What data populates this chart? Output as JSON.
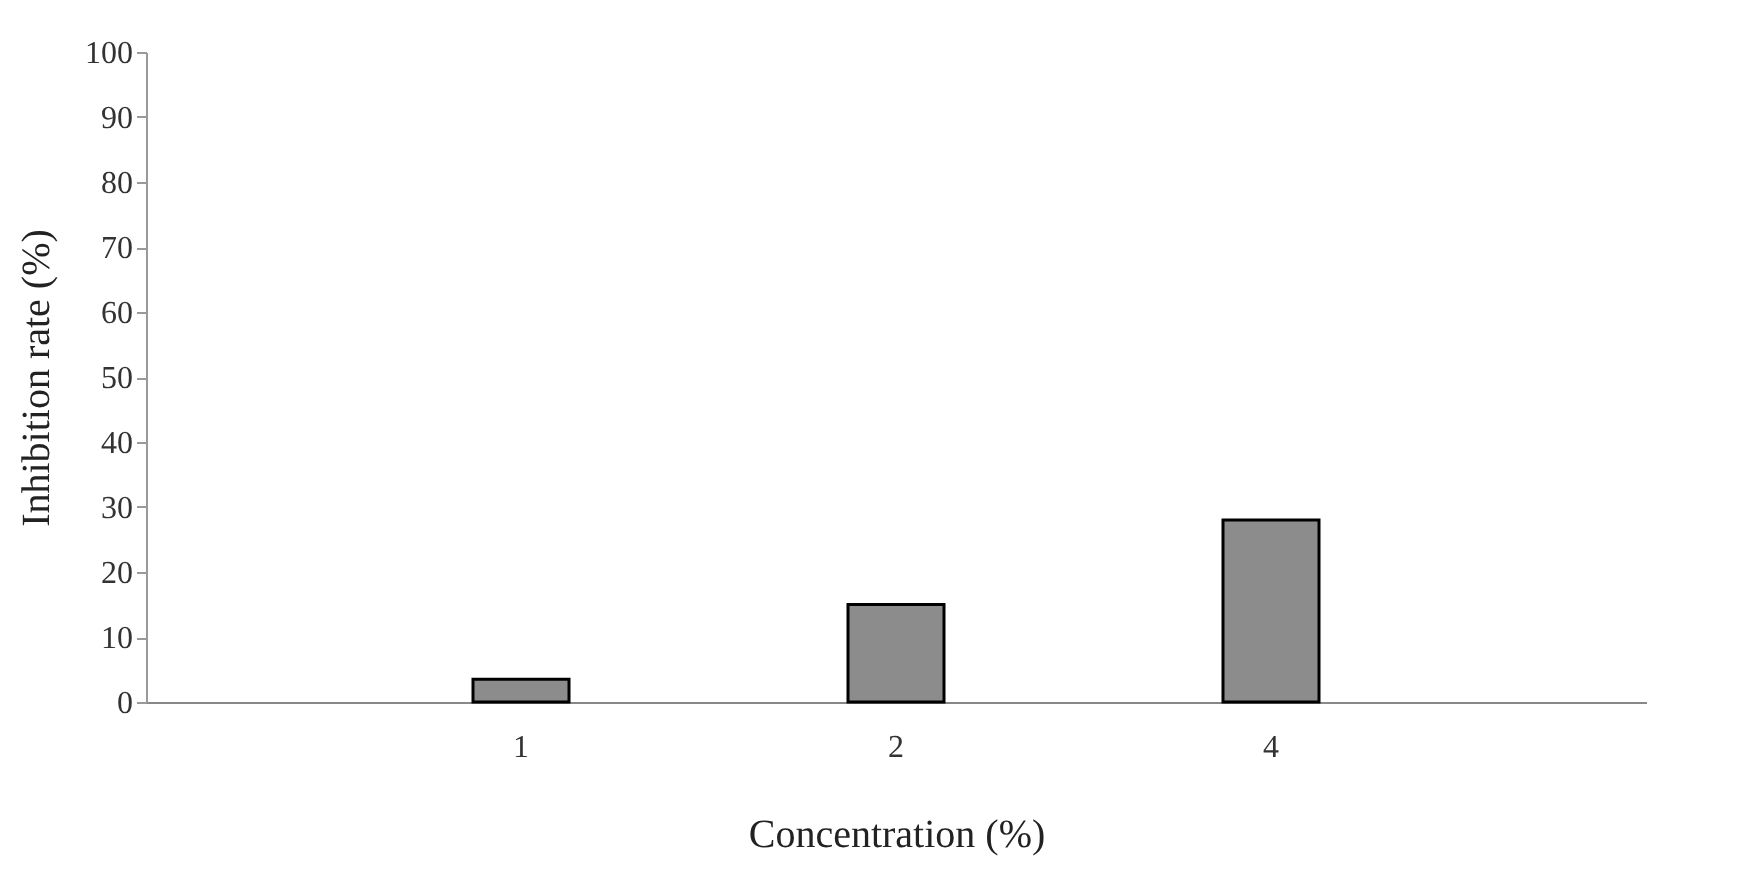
{
  "chart_data": {
    "type": "bar",
    "xlabel": "Concentration (%)",
    "ylabel": "Inhibition rate (%)",
    "categories": [
      "1",
      "2",
      "4"
    ],
    "values": [
      3.5,
      15,
      28
    ],
    "color": "#8c8c8c",
    "ylim": [
      0,
      100
    ],
    "yticks": [
      0,
      10,
      20,
      30,
      40,
      50,
      60,
      70,
      80,
      90,
      100
    ],
    "grid": false
  }
}
